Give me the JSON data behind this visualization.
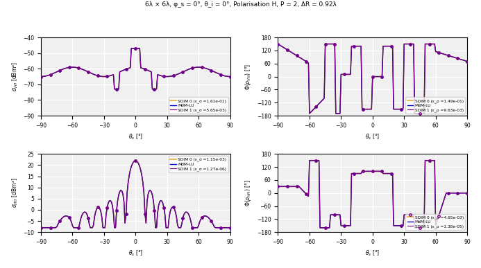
{
  "title": "6λ × 6λ, φ_s = 0°, θ_i = 0°, Polarisation H, P = 2, ΔR = 0.92λ",
  "color_MdM": "#0000cd",
  "color_SDIM0": "#DAA520",
  "color_SDIM1": "#800080",
  "legend_VH_sigma": [
    "MdM-LU",
    "SDIM 0 (ε_σ =1.61e-01)",
    "SDIM 1 (ε_σ =5.65e-03)"
  ],
  "legend_VH_phase": [
    "MdM-LU",
    "SDIM 0 (ε_ρ =1.49e-01)",
    "SDIM 1 (ε_ρ =9.63e-03)"
  ],
  "legend_HH_sigma": [
    "MdM-LU",
    "SDIM 0 (ε_σ =1.15e-03)",
    "SDIM 1 (ε_σ =1.27e-06)"
  ],
  "legend_HH_phase": [
    "MdM-LU",
    "SDIM 0 (ε_ρ =4.65e-03)",
    "SDIM 1 (ε_ρ =1.38e-05)"
  ],
  "ylim_sigma_VH": [
    -90,
    -40
  ],
  "ylim_phase_VH": [
    -180,
    180
  ],
  "ylim_sigma_HH": [
    -10,
    25
  ],
  "ylim_phase_HH": [
    -180,
    180
  ],
  "xlim": [
    -90,
    90
  ],
  "bg_color": "#f0f0f0",
  "grid_color": "white",
  "yticks_sigma_VH": [
    -90,
    -80,
    -70,
    -60,
    -50,
    -40
  ],
  "yticks_phase": [
    -180,
    -120,
    -60,
    0,
    60,
    120,
    180
  ],
  "yticks_sigma_HH": [
    -10,
    -5,
    0,
    5,
    10,
    15,
    20,
    25
  ],
  "xticks": [
    -90,
    -60,
    -30,
    0,
    30,
    60,
    90
  ]
}
